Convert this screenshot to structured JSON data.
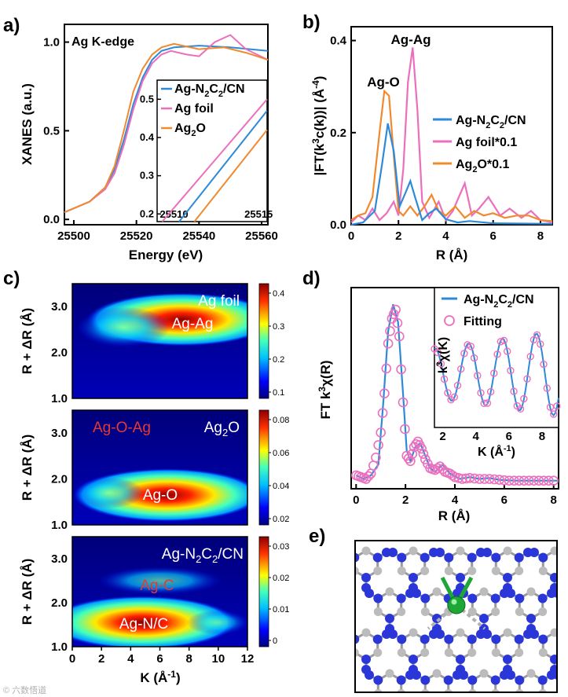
{
  "colors": {
    "cn": "#2e8ad8",
    "foil": "#ec6fbd",
    "oxide": "#f08a30",
    "n_atom": "#2a36d8",
    "c_atom": "#bcbcbc",
    "ag_atom": "#1ea636"
  },
  "watermark": "© 六数悟道",
  "panel_a": {
    "label": "a)",
    "title": "Ag K-edge",
    "chart_data": {
      "type": "line",
      "title": "Ag K-edge",
      "xlabel": "Energy (eV)",
      "ylabel": "XANES (a.u.)",
      "xlim": [
        25497,
        25562
      ],
      "ylim": [
        -0.03,
        1.1
      ],
      "xticks": [
        "25500",
        "25520",
        "25540",
        "25560"
      ],
      "yticks": [
        "0.0",
        "0.5",
        "1.0"
      ],
      "series": [
        {
          "name": "Ag-N2C2/CN",
          "x": [
            25497,
            25505,
            25510,
            25513,
            25516,
            25519,
            25522,
            25525,
            25528,
            25532,
            25540,
            25550,
            25562
          ],
          "y": [
            0.04,
            0.1,
            0.18,
            0.28,
            0.45,
            0.65,
            0.8,
            0.9,
            0.95,
            0.97,
            0.98,
            0.97,
            0.95
          ]
        },
        {
          "name": "Ag foil",
          "x": [
            25497,
            25505,
            25510,
            25513,
            25516,
            25519,
            25522,
            25525,
            25528,
            25531,
            25536,
            25540,
            25545,
            25550,
            25555,
            25562
          ],
          "y": [
            0.04,
            0.1,
            0.17,
            0.26,
            0.42,
            0.62,
            0.78,
            0.88,
            0.93,
            0.95,
            0.93,
            0.92,
            1.0,
            1.04,
            0.96,
            0.9
          ]
        },
        {
          "name": "Ag2O",
          "x": [
            25497,
            25505,
            25510,
            25513,
            25516,
            25519,
            25522,
            25525,
            25528,
            25532,
            25540,
            25548,
            25555,
            25562
          ],
          "y": [
            0.04,
            0.1,
            0.18,
            0.3,
            0.5,
            0.72,
            0.85,
            0.93,
            0.97,
            0.99,
            0.96,
            0.97,
            0.94,
            0.9
          ]
        }
      ]
    },
    "inset": {
      "xlim": [
        25509,
        25515.5
      ],
      "ylim": [
        0.18,
        0.55
      ],
      "xticks": [
        "25510",
        "25515"
      ],
      "yticks": [
        "0.2",
        "0.3",
        "0.4",
        "0.5"
      ],
      "legend": [
        {
          "key": "cn",
          "pre": "Ag-N",
          "s1": "2",
          "mid": "C",
          "s2": "2",
          "post": "/CN"
        },
        {
          "key": "foil",
          "pre": "Ag foil",
          "s1": "",
          "mid": "",
          "s2": "",
          "post": ""
        },
        {
          "key": "oxide",
          "pre": "Ag",
          "s1": "2",
          "mid": "O",
          "s2": "",
          "post": ""
        }
      ],
      "series": [
        {
          "name": "Ag-N2C2/CN",
          "x": [
            25510.3,
            25515.5
          ],
          "y": [
            0.18,
            0.47
          ]
        },
        {
          "name": "Ag foil",
          "x": [
            25509.3,
            25515.5
          ],
          "y": [
            0.18,
            0.5
          ]
        },
        {
          "name": "Ag2O",
          "x": [
            25511.2,
            25515.5
          ],
          "y": [
            0.18,
            0.42
          ]
        }
      ]
    }
  },
  "panel_b": {
    "label": "b)",
    "ylabel": {
      "pre": "|FT(k",
      "sup": "3",
      "mid": "c(k))| (Å",
      "sup2": "-4",
      "post": ")"
    },
    "legend": [
      {
        "key": "cn",
        "pre": "Ag-N",
        "s1": "2",
        "mid": "C",
        "s2": "2",
        "post": "/CN"
      },
      {
        "key": "foil",
        "pre": "Ag foil*0.1",
        "s1": "",
        "mid": "",
        "s2": "",
        "post": ""
      },
      {
        "key": "oxide",
        "pre": "Ag",
        "s1": "2",
        "mid": "O*0.1",
        "s2": "",
        "post": ""
      }
    ],
    "annotations": {
      "ag_ag": "Ag-Ag",
      "ag_o": "Ag-O"
    },
    "chart_data": {
      "type": "line",
      "xlabel": "R (Å)",
      "ylabel": "|FT(k3c(k))| (Å-4)",
      "xlim": [
        0,
        8.5
      ],
      "ylim": [
        0,
        0.43
      ],
      "xticks": [
        "0",
        "2",
        "4",
        "6",
        "8"
      ],
      "yticks": [
        "0.0",
        "0.2",
        "0.4"
      ],
      "series": [
        {
          "name": "Ag-N2C2/CN",
          "x": [
            0,
            0.5,
            1.0,
            1.3,
            1.55,
            1.8,
            2.05,
            2.3,
            2.5,
            2.7,
            3.0,
            3.3,
            3.6,
            4.0,
            4.5,
            5.0,
            6.0,
            8.5
          ],
          "y": [
            0.0,
            0.005,
            0.03,
            0.13,
            0.22,
            0.16,
            0.04,
            0.07,
            0.095,
            0.06,
            0.01,
            0.025,
            0.035,
            0.012,
            0.005,
            0.008,
            0.003,
            0.002
          ]
        },
        {
          "name": "Ag foil*0.1",
          "x": [
            0,
            0.3,
            0.6,
            0.9,
            1.2,
            1.5,
            1.8,
            2.0,
            2.2,
            2.4,
            2.6,
            2.8,
            3.0,
            3.3,
            3.7,
            4.0,
            4.3,
            4.55,
            4.8,
            5.1,
            5.4,
            5.8,
            6.3,
            6.7,
            7.2,
            7.6,
            8.0,
            8.5
          ],
          "y": [
            0.005,
            0.02,
            0.01,
            0.035,
            0.01,
            0.025,
            0.05,
            0.02,
            0.12,
            0.31,
            0.385,
            0.25,
            0.05,
            0.015,
            0.05,
            0.01,
            0.03,
            0.06,
            0.09,
            0.02,
            0.035,
            0.06,
            0.02,
            0.035,
            0.015,
            0.03,
            0.01,
            0.005
          ]
        },
        {
          "name": "Ag2O*0.1",
          "x": [
            0,
            0.3,
            0.6,
            0.9,
            1.2,
            1.4,
            1.6,
            1.8,
            2.0,
            2.2,
            2.5,
            2.8,
            3.1,
            3.4,
            3.7,
            4.0,
            4.4,
            4.8,
            5.2,
            5.6,
            6.0,
            6.5,
            7.0,
            7.5,
            8.0,
            8.5
          ],
          "y": [
            0.01,
            0.02,
            0.025,
            0.06,
            0.2,
            0.29,
            0.28,
            0.15,
            0.03,
            0.02,
            0.04,
            0.02,
            0.04,
            0.065,
            0.03,
            0.02,
            0.04,
            0.015,
            0.03,
            0.02,
            0.025,
            0.015,
            0.02,
            0.02,
            0.01,
            0.008
          ]
        }
      ]
    }
  },
  "panel_c": {
    "label": "c)",
    "xlabel": "K (Å-1)",
    "xlabel_pre": "K (Å",
    "xlabel_sup": "-1",
    "xlabel_post": ")",
    "ylabel": "R + ΔR (Å)",
    "xticks": [
      "0",
      "2",
      "4",
      "6",
      "8",
      "10",
      "12"
    ],
    "yticks": [
      "1.0",
      "2.0",
      "3.0"
    ],
    "maps": [
      {
        "sample": "Ag foil",
        "peak_label": "Ag-Ag",
        "cbar_ticks": [
          "0.4",
          "0.3",
          "0.2",
          "0.1"
        ]
      },
      {
        "sample": "Ag2O",
        "sample_pre": "Ag",
        "sample_sub": "2",
        "sample_post": "O",
        "peak_label": "Ag-O",
        "extra_label": "Ag-O-Ag",
        "cbar_ticks": [
          "0.08",
          "0.06",
          "0.04",
          "0.02"
        ]
      },
      {
        "sample": "Ag-N2C2/CN",
        "peak_label": "Ag-N/C",
        "extra_label": "Ag-C",
        "cbar_ticks": [
          "0.03",
          "0.02",
          "0.01",
          "0"
        ]
      }
    ],
    "chart_data": {
      "type": "heatmap",
      "xlabel": "K (Å-1)",
      "ylabel": "R + ΔR (Å)",
      "xlim": [
        0,
        12
      ],
      "ylim": [
        1.0,
        3.5
      ],
      "maps": [
        {
          "name": "Ag foil",
          "zmax": 0.42,
          "peaks": [
            {
              "k": 7.5,
              "r": 2.72,
              "label": "Ag-Ag"
            }
          ]
        },
        {
          "name": "Ag2O",
          "zmax": 0.085,
          "peaks": [
            {
              "k": 6.5,
              "r": 1.65,
              "label": "Ag-O"
            }
          ]
        },
        {
          "name": "Ag-N2C2/CN",
          "zmax": 0.033,
          "peaks": [
            {
              "k": 4.8,
              "r": 1.55,
              "label": "Ag-N/C"
            },
            {
              "k": 6.0,
              "r": 2.5,
              "label": "Ag-C"
            }
          ]
        }
      ]
    }
  },
  "panel_d": {
    "label": "d)",
    "ylabel": {
      "pre": "FT k",
      "sup": "3",
      "post": "χ(R)"
    },
    "legend": [
      {
        "key": "cn",
        "pre": "Ag-N",
        "s1": "2",
        "mid": "C",
        "s2": "2",
        "post": "/CN"
      },
      {
        "key": "fit",
        "pre": "Fitting",
        "s1": "",
        "mid": "",
        "s2": "",
        "post": ""
      }
    ],
    "chart_data": {
      "type": "line",
      "xlabel": "R (Å)",
      "ylabel": "FT k3χ(R)",
      "xlim": [
        -0.2,
        8.2
      ],
      "ylim": [
        0,
        1.05
      ],
      "xticks": [
        "0",
        "2",
        "4",
        "6",
        "8"
      ],
      "series": [
        {
          "name": "Ag-N2C2/CN",
          "x": [
            0,
            0.3,
            0.6,
            0.9,
            1.1,
            1.3,
            1.5,
            1.7,
            1.9,
            2.05,
            2.2,
            2.4,
            2.6,
            2.8,
            3.0,
            3.2,
            3.5,
            3.8,
            4.2,
            4.6,
            5.0,
            5.4,
            5.8,
            6.4,
            7.0,
            8.2
          ],
          "y": [
            0.04,
            0.02,
            0.04,
            0.1,
            0.45,
            0.85,
            1.0,
            0.9,
            0.5,
            0.18,
            0.12,
            0.2,
            0.22,
            0.15,
            0.08,
            0.06,
            0.1,
            0.05,
            0.02,
            0.03,
            0.02,
            0.025,
            0.015,
            0.01,
            0.01,
            0.01
          ]
        },
        {
          "name": "Fitting",
          "x": [
            0,
            0.2,
            0.4,
            0.6,
            0.8,
            1.0,
            1.15,
            1.3,
            1.45,
            1.6,
            1.75,
            1.9,
            2.05,
            2.2,
            2.35,
            2.5,
            2.65,
            2.8,
            3.0,
            3.2,
            3.4,
            3.6,
            3.8,
            4.0,
            4.3,
            4.6,
            5.0,
            5.4,
            5.8,
            6.2,
            6.6,
            7.0,
            7.4,
            7.8,
            8.2
          ],
          "y": [
            0.04,
            0.03,
            0.02,
            0.05,
            0.14,
            0.28,
            0.5,
            0.78,
            0.92,
            0.97,
            0.82,
            0.45,
            0.15,
            0.12,
            0.2,
            0.23,
            0.19,
            0.13,
            0.08,
            0.07,
            0.09,
            0.06,
            0.05,
            0.03,
            0.02,
            0.025,
            0.02,
            0.02,
            0.015,
            0.01,
            0.01,
            0.01,
            0.01,
            0.01,
            0.01
          ]
        }
      ]
    },
    "inset": {
      "ylabel_pre": "k",
      "ylabel_sup": "3",
      "ylabel_post": "χ(K)",
      "xlabel_pre": "K (Å",
      "xlabel_sup": "-1",
      "xlabel_post": ")",
      "xticks": [
        "2",
        "4",
        "6",
        "8"
      ],
      "xlim": [
        1.5,
        9
      ]
    }
  },
  "panel_e": {
    "label": "e)"
  }
}
